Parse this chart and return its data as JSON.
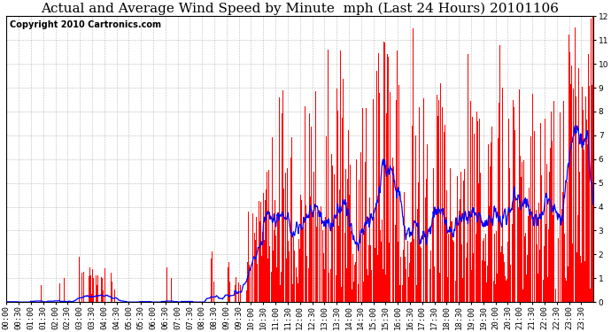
{
  "title": "Actual and Average Wind Speed by Minute  mph (Last 24 Hours) 20101106",
  "copyright": "Copyright 2010 Cartronics.com",
  "ylim": [
    0.0,
    12.0
  ],
  "yticks": [
    0.0,
    1.0,
    2.0,
    3.0,
    4.0,
    5.0,
    6.0,
    7.0,
    8.0,
    9.0,
    10.0,
    11.0,
    12.0
  ],
  "bar_color": "#FF0000",
  "line_color": "#0000FF",
  "background_color": "#FFFFFF",
  "grid_color": "#BBBBBB",
  "title_fontsize": 11,
  "copyright_fontsize": 7,
  "tick_fontsize": 6.5
}
